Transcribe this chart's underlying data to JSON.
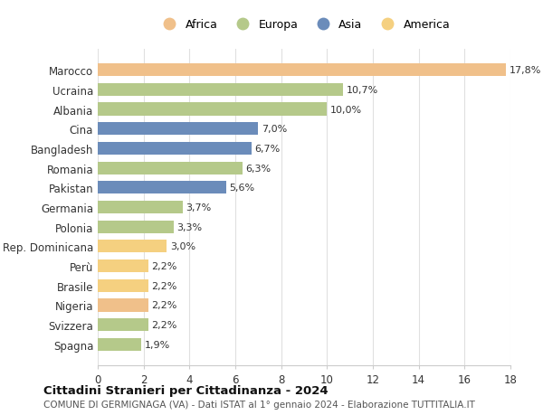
{
  "countries": [
    "Marocco",
    "Ucraina",
    "Albania",
    "Cina",
    "Bangladesh",
    "Romania",
    "Pakistan",
    "Germania",
    "Polonia",
    "Rep. Dominicana",
    "Perù",
    "Brasile",
    "Nigeria",
    "Svizzera",
    "Spagna"
  ],
  "values": [
    17.8,
    10.7,
    10.0,
    7.0,
    6.7,
    6.3,
    5.6,
    3.7,
    3.3,
    3.0,
    2.2,
    2.2,
    2.2,
    2.2,
    1.9
  ],
  "labels": [
    "17,8%",
    "10,7%",
    "10,0%",
    "7,0%",
    "6,7%",
    "6,3%",
    "5,6%",
    "3,7%",
    "3,3%",
    "3,0%",
    "2,2%",
    "2,2%",
    "2,2%",
    "2,2%",
    "1,9%"
  ],
  "colors": [
    "#f0c08a",
    "#b5c98a",
    "#b5c98a",
    "#6b8cba",
    "#6b8cba",
    "#b5c98a",
    "#6b8cba",
    "#b5c98a",
    "#b5c98a",
    "#f5d080",
    "#f5d080",
    "#f5d080",
    "#f0c08a",
    "#b5c98a",
    "#b5c98a"
  ],
  "legend": [
    {
      "label": "Africa",
      "color": "#f0c08a"
    },
    {
      "label": "Europa",
      "color": "#b5c98a"
    },
    {
      "label": "Asia",
      "color": "#6b8cba"
    },
    {
      "label": "America",
      "color": "#f5d080"
    }
  ],
  "xlim": [
    0,
    18
  ],
  "xticks": [
    0,
    2,
    4,
    6,
    8,
    10,
    12,
    14,
    16,
    18
  ],
  "title": "Cittadini Stranieri per Cittadinanza - 2024",
  "subtitle": "COMUNE DI GERMIGNAGA (VA) - Dati ISTAT al 1° gennaio 2024 - Elaborazione TUTTITALIA.IT",
  "background_color": "#ffffff",
  "grid_color": "#e0e0e0"
}
